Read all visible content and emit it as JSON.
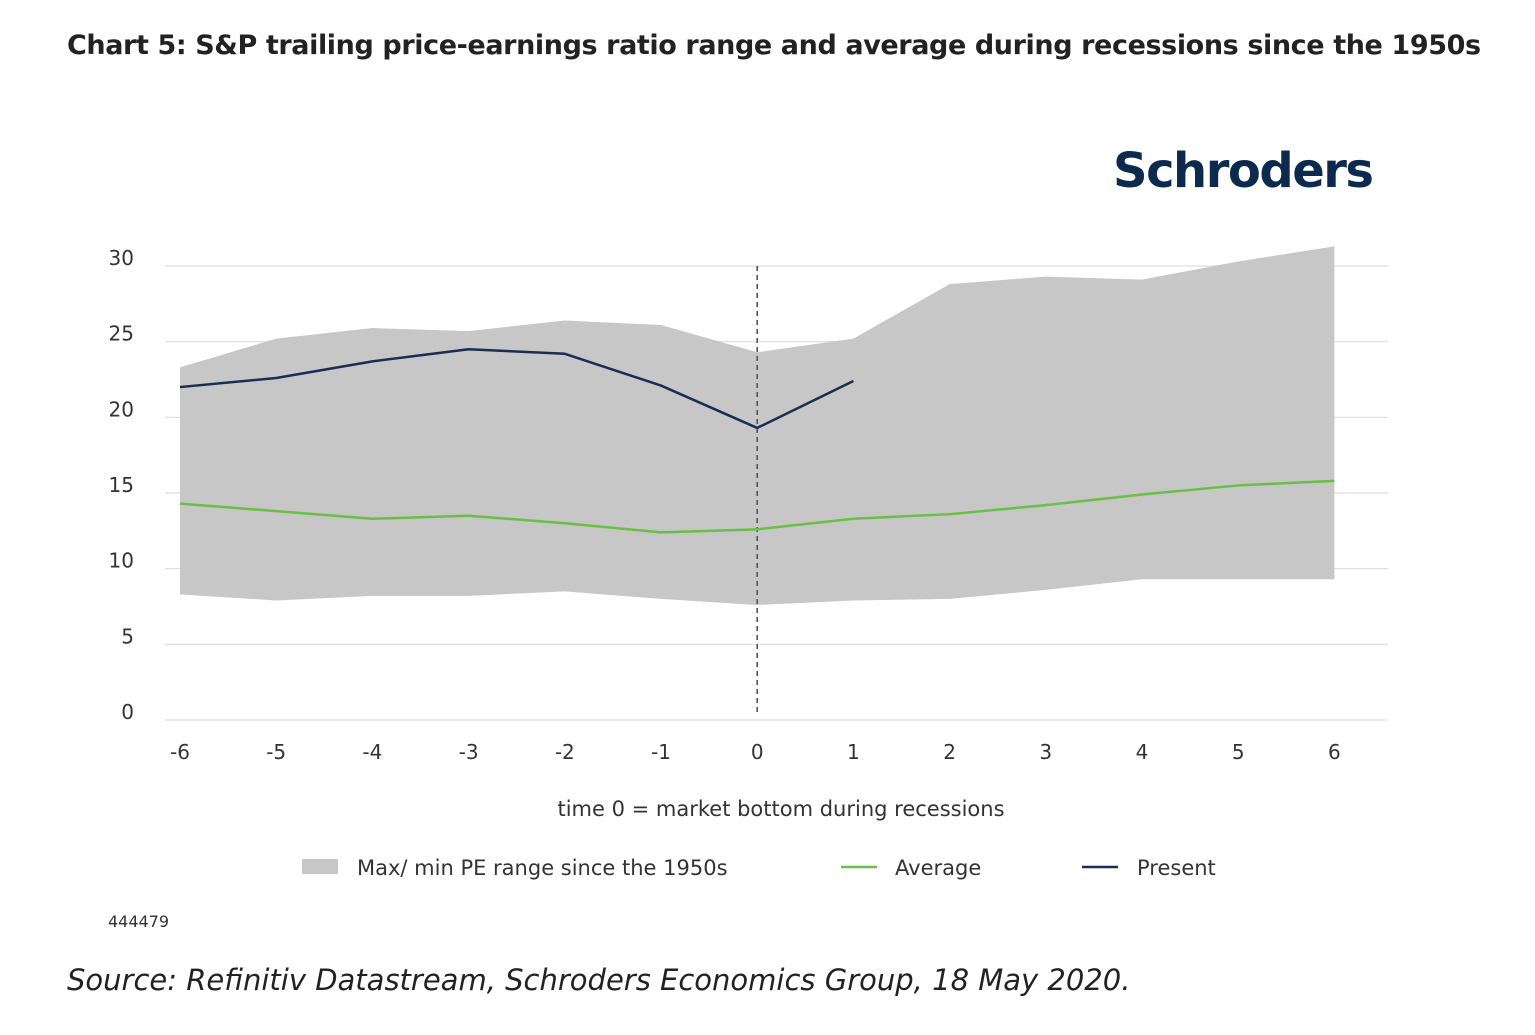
{
  "header": {
    "title": "Chart 5: S&P trailing price-earnings ratio range and average during recessions since the 1950s",
    "brand": "Schroders"
  },
  "footer": {
    "code": "444479",
    "source": "Source: Refinitiv Datastream, Schroders Economics Group, 18 May 2020."
  },
  "colors": {
    "range_fill": "#c7c7c7",
    "average": "#6abf45",
    "present": "#1b2d54",
    "grid": "#dddddd",
    "brand": "#0b2a4e"
  },
  "chart_data": {
    "type": "area",
    "title": "",
    "xlabel": "time 0 = market bottom during recessions",
    "ylabel": "",
    "x": [
      -6,
      -5,
      -4,
      -3,
      -2,
      -1,
      0,
      1,
      2,
      3,
      4,
      5,
      6
    ],
    "x_tick_labels": [
      "-6",
      "-5",
      "-4",
      "-3",
      "-2",
      "-1",
      "0",
      "1",
      "2",
      "3",
      "4",
      "5",
      "6"
    ],
    "ylim": [
      0,
      30
    ],
    "y_ticks": [
      0,
      5,
      10,
      15,
      20,
      25,
      30
    ],
    "grid": true,
    "vertical_marker": {
      "x": 0,
      "style": "dashed"
    },
    "legend_position": "bottom",
    "series": [
      {
        "name": "Max/ min PE range since the 1950s",
        "kind": "band",
        "max": [
          23.3,
          25.2,
          25.9,
          25.7,
          26.4,
          26.1,
          24.3,
          25.2,
          28.8,
          29.3,
          29.1,
          30.3,
          31.3
        ],
        "min": [
          8.3,
          7.9,
          8.2,
          8.2,
          8.5,
          8.0,
          7.6,
          7.9,
          8.0,
          8.6,
          9.3,
          9.3,
          9.3
        ]
      },
      {
        "name": "Average",
        "kind": "line",
        "values": [
          14.3,
          13.8,
          13.3,
          13.5,
          13.0,
          12.4,
          12.6,
          13.3,
          13.6,
          14.2,
          14.9,
          15.5,
          15.8
        ]
      },
      {
        "name": "Present",
        "kind": "line",
        "values": [
          22.0,
          22.6,
          23.7,
          24.5,
          24.2,
          22.1,
          19.3,
          22.4,
          null,
          null,
          null,
          null,
          null
        ]
      }
    ]
  }
}
